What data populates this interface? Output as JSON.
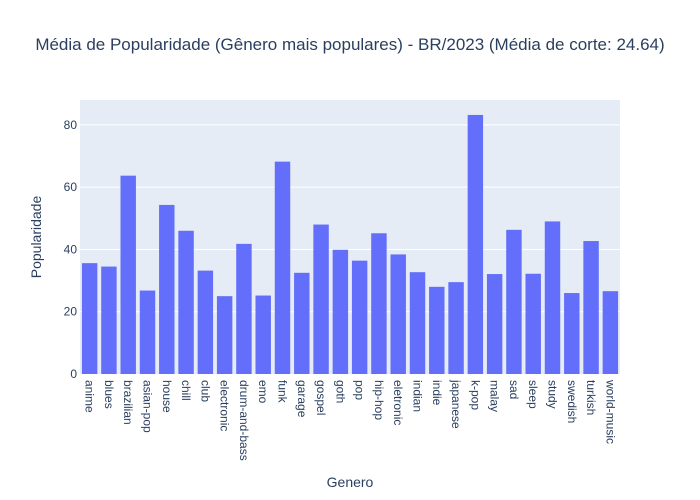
{
  "chart_data": {
    "type": "bar",
    "title": "Média de Popularidade (Gênero mais populares) - BR/2023 (Média de corte: 24.64)",
    "xlabel": "Genero",
    "ylabel": "Popularidade",
    "ylim": [
      0,
      88
    ],
    "yticks": [
      0,
      20,
      40,
      60,
      80
    ],
    "grid": true,
    "legend": "none",
    "bar_color": "#636efa",
    "plot_bg": "#e5ecf6",
    "categories": [
      "anime",
      "blues",
      "brazilian",
      "asian-pop",
      "house",
      "chill",
      "club",
      "electronic",
      "drum-and-bass",
      "emo",
      "funk",
      "garage",
      "gospel",
      "goth",
      "pop",
      "hip-hop",
      "eletronic",
      "indian",
      "indie",
      "japanese",
      "k-pop",
      "malay",
      "sad",
      "sleep",
      "study",
      "swedish",
      "turkish",
      "world-music"
    ],
    "values": [
      35.6,
      34.5,
      63.7,
      26.8,
      54.3,
      46.0,
      33.2,
      25.0,
      41.8,
      25.2,
      68.2,
      32.5,
      48.0,
      39.9,
      36.4,
      45.2,
      38.4,
      32.7,
      28.0,
      29.5,
      83.2,
      32.1,
      46.3,
      32.2,
      49.0,
      26.0,
      42.7,
      26.6
    ]
  }
}
